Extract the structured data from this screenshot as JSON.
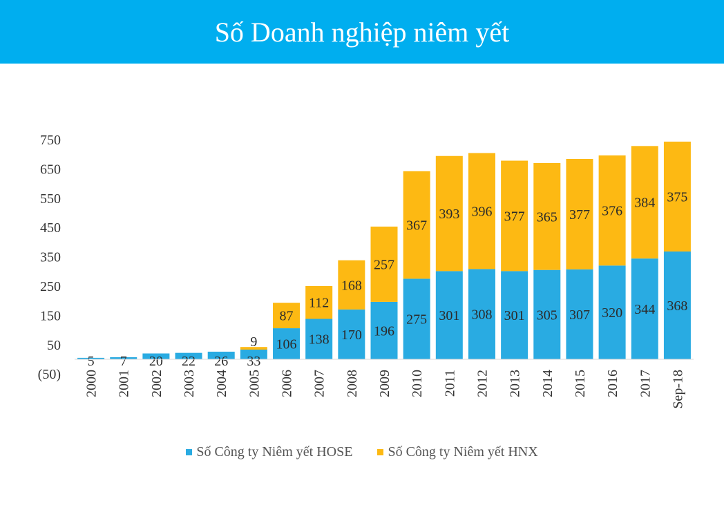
{
  "header": {
    "title": "Số Doanh nghiệp niêm yết"
  },
  "colors": {
    "header_bg": "#00aeef",
    "hose": "#29abe2",
    "hnx": "#fdb913"
  },
  "chart_data": {
    "type": "bar",
    "stacked": true,
    "categories": [
      "2000",
      "2001",
      "2002",
      "2003",
      "2004",
      "2005",
      "2006",
      "2007",
      "2008",
      "2009",
      "2010",
      "2011",
      "2012",
      "2013",
      "2014",
      "2015",
      "2016",
      "2017",
      "Sep-18"
    ],
    "series": [
      {
        "name": "Số Công ty Niêm yết HOSE",
        "values": [
          5,
          7,
          20,
          22,
          26,
          33,
          106,
          138,
          170,
          196,
          275,
          301,
          308,
          301,
          305,
          307,
          320,
          344,
          368
        ]
      },
      {
        "name": "Số Công ty Niêm yết HNX",
        "values": [
          0,
          0,
          0,
          0,
          0,
          9,
          87,
          112,
          168,
          257,
          367,
          393,
          396,
          377,
          365,
          377,
          376,
          384,
          375
        ]
      }
    ],
    "y_ticks": [
      "750",
      "650",
      "550",
      "450",
      "350",
      "250",
      "150",
      "50",
      "(50)"
    ],
    "y_tick_values": [
      750,
      650,
      550,
      450,
      350,
      250,
      150,
      50,
      -50
    ],
    "ylim": [
      -50,
      750
    ],
    "grid": false,
    "legend_position": "bottom"
  }
}
